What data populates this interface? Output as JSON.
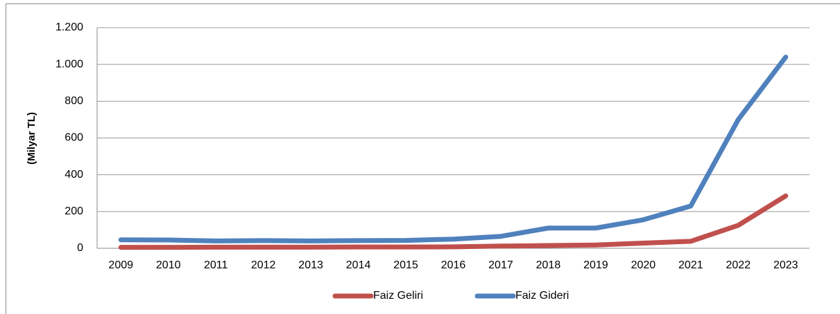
{
  "chart_data": {
    "type": "line",
    "y_label": "(Milyar TL)",
    "categories": [
      "2009",
      "2010",
      "2011",
      "2012",
      "2013",
      "2014",
      "2015",
      "2016",
      "2017",
      "2018",
      "2019",
      "2020",
      "2021",
      "2022",
      "2023"
    ],
    "series": [
      {
        "name": "Faiz Geliri",
        "color": "#c0504d",
        "values": [
          5,
          5,
          6,
          6,
          6,
          7,
          7,
          8,
          12,
          15,
          18,
          28,
          38,
          125,
          285
        ]
      },
      {
        "name": "Faiz Gideri",
        "color": "#4f81bd",
        "values": [
          46,
          45,
          40,
          42,
          40,
          42,
          43,
          50,
          65,
          110,
          110,
          155,
          230,
          700,
          1040
        ]
      }
    ],
    "ylim": [
      0,
      1200
    ],
    "yticks": [
      0,
      200,
      400,
      600,
      800,
      {
        "value": 1000,
        "label": "1.000"
      },
      {
        "value": 1200,
        "label": "1.200"
      }
    ],
    "grid": true,
    "legend": "bottom"
  }
}
